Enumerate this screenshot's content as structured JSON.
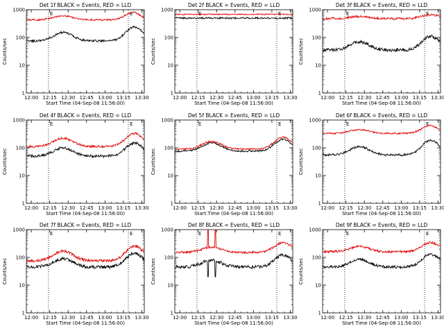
{
  "figure": {
    "background": "#ffffff",
    "colors": {
      "events": "#000000",
      "lld": "#e00000",
      "axes": "#000000"
    }
  },
  "chart_data": [
    {
      "type": "line",
      "title": "Det 1f BLACK = Events, RED = LLD",
      "xlabel": "Start Time (04-Sep-08 11:56:00)",
      "ylabel": "Counts/sec",
      "x_ticks": [
        "12:00",
        "12:15",
        "12:30",
        "12:45",
        "13:00",
        "13:15",
        "13:30"
      ],
      "y_ticks": [
        "1",
        "10",
        "100",
        "1000"
      ],
      "y_scale": "log",
      "ylim": [
        1,
        1000
      ],
      "xlim_minutes": [
        0,
        96
      ],
      "vlines_minutes": [
        18,
        83
      ],
      "annotations": [
        "E",
        "E"
      ],
      "series": [
        {
          "name": "Events",
          "color": "#000000",
          "shape": "wave",
          "base": 75,
          "peaks": [
            150,
            240
          ],
          "noise": 0.04
        },
        {
          "name": "LLD",
          "color": "#e00000",
          "shape": "wave",
          "base": 430,
          "peaks": [
            600,
            820
          ],
          "noise": 0.03,
          "tail": 500
        }
      ]
    },
    {
      "type": "line",
      "title": "Det 2f BLACK = Events, RED = LLD",
      "xlabel": "Start Time (04-Sep-08 11:56:00)",
      "ylabel": "Counts/sec",
      "x_ticks": [
        "12:00",
        "12:15",
        "12:30",
        "12:45",
        "13:00",
        "13:15",
        "13:30"
      ],
      "y_ticks": [
        "1",
        "10",
        "100",
        "1000"
      ],
      "y_scale": "log",
      "ylim": [
        1,
        1000
      ],
      "xlim_minutes": [
        0,
        96
      ],
      "vlines_minutes": [
        18,
        83
      ],
      "annotations": [
        "E",
        "E"
      ],
      "series": [
        {
          "name": "Events",
          "color": "#000000",
          "shape": "flat",
          "base": 500,
          "peaks": [],
          "noise": 0.03
        },
        {
          "name": "LLD",
          "color": "#e00000",
          "shape": "flat",
          "base": 680,
          "peaks": [],
          "noise": 0.02
        }
      ]
    },
    {
      "type": "line",
      "title": "Det 3f BLACK = Events, RED = LLD",
      "xlabel": "Start Time (04-Sep-08 11:56:00)",
      "ylabel": "Counts/sec",
      "x_ticks": [
        "12:00",
        "12:15",
        "12:30",
        "12:45",
        "13:00",
        "13:15",
        "13:30"
      ],
      "y_ticks": [
        "1",
        "10",
        "100",
        "1000"
      ],
      "y_scale": "log",
      "ylim": [
        1,
        1000
      ],
      "xlim_minutes": [
        0,
        96
      ],
      "vlines_minutes": [
        18,
        83
      ],
      "annotations": [
        "E",
        "E"
      ],
      "series": [
        {
          "name": "Events",
          "color": "#000000",
          "shape": "wave",
          "base": 35,
          "peaks": [
            70,
            110
          ],
          "noise": 0.06
        },
        {
          "name": "LLD",
          "color": "#e00000",
          "shape": "wave",
          "base": 480,
          "peaks": [
            570,
            650
          ],
          "noise": 0.04
        }
      ]
    },
    {
      "type": "line",
      "title": "Det 4f BLACK = Events, RED = LLD",
      "xlabel": "Start Time (04-Sep-08 11:56:00)",
      "ylabel": "Counts/sec",
      "x_ticks": [
        "12:00",
        "12:15",
        "12:30",
        "12:45",
        "13:00",
        "13:15",
        "13:30"
      ],
      "y_ticks": [
        "1",
        "10",
        "100",
        "1000"
      ],
      "y_scale": "log",
      "ylim": [
        1,
        1000
      ],
      "xlim_minutes": [
        0,
        96
      ],
      "vlines_minutes": [
        18,
        83
      ],
      "annotations": [
        "E",
        "E"
      ],
      "series": [
        {
          "name": "Events",
          "color": "#000000",
          "shape": "wave",
          "base": 50,
          "peaks": [
            100,
            150
          ],
          "noise": 0.05
        },
        {
          "name": "LLD",
          "color": "#e00000",
          "shape": "wave",
          "base": 110,
          "peaks": [
            220,
            330
          ],
          "noise": 0.04
        }
      ]
    },
    {
      "type": "line",
      "title": "Det 5f BLACK = Events, RED = LLD",
      "xlabel": "Start Time (04-Sep-08 11:56:00)",
      "ylabel": "Counts/sec",
      "x_ticks": [
        "12:00",
        "12:15",
        "12:30",
        "12:45",
        "13:00",
        "13:15",
        "13:30"
      ],
      "y_ticks": [
        "1",
        "10",
        "100",
        "1000"
      ],
      "y_scale": "log",
      "ylim": [
        1,
        1000
      ],
      "xlim_minutes": [
        0,
        96
      ],
      "vlines_minutes": [
        18,
        83
      ],
      "annotations": [
        "E",
        "E"
      ],
      "series": [
        {
          "name": "Events",
          "color": "#000000",
          "shape": "wave",
          "base": 75,
          "peaks": [
            150,
            200
          ],
          "noise": 0.03
        },
        {
          "name": "LLD",
          "color": "#e00000",
          "shape": "wave",
          "base": 90,
          "peaks": [
            170,
            240
          ],
          "noise": 0.03
        }
      ]
    },
    {
      "type": "line",
      "title": "Det 6f BLACK = Events, RED = LLD",
      "xlabel": "Start Time (04-Sep-08 11:56:00)",
      "ylabel": "Counts/sec",
      "x_ticks": [
        "12:00",
        "12:15",
        "12:30",
        "12:45",
        "13:00",
        "13:15",
        "13:30"
      ],
      "y_ticks": [
        "1",
        "10",
        "100",
        "1000"
      ],
      "y_scale": "log",
      "ylim": [
        1,
        1000
      ],
      "xlim_minutes": [
        0,
        96
      ],
      "vlines_minutes": [
        18,
        83
      ],
      "annotations": [
        "E",
        "E"
      ],
      "series": [
        {
          "name": "Events",
          "color": "#000000",
          "shape": "wave",
          "base": 55,
          "peaks": [
            110,
            190
          ],
          "noise": 0.04
        },
        {
          "name": "LLD",
          "color": "#e00000",
          "shape": "wave",
          "base": 330,
          "peaks": [
            450,
            640
          ],
          "noise": 0.03,
          "tail": 450
        }
      ]
    },
    {
      "type": "line",
      "title": "Det 7f BLACK = Events, RED = LLD",
      "xlabel": "Start Time (04-Sep-08 11:56:00)",
      "ylabel": "Counts/sec",
      "x_ticks": [
        "12:00",
        "12:15",
        "12:30",
        "12:45",
        "13:00",
        "13:15",
        "13:30"
      ],
      "y_ticks": [
        "1",
        "10",
        "100",
        "1000"
      ],
      "y_scale": "log",
      "ylim": [
        1,
        1000
      ],
      "xlim_minutes": [
        0,
        96
      ],
      "vlines_minutes": [
        18,
        83
      ],
      "annotations": [
        "E",
        "E"
      ],
      "series": [
        {
          "name": "Events",
          "color": "#000000",
          "shape": "wave",
          "base": 45,
          "peaks": [
            90,
            140
          ],
          "noise": 0.06
        },
        {
          "name": "LLD",
          "color": "#e00000",
          "shape": "wave",
          "base": 75,
          "peaks": [
            170,
            260
          ],
          "noise": 0.05
        }
      ]
    },
    {
      "type": "line",
      "title": "Det 8f BLACK = Events, RED = LLD",
      "xlabel": "Start Time (04-Sep-08 11:56:00)",
      "ylabel": "Counts/sec",
      "x_ticks": [
        "12:00",
        "12:15",
        "12:30",
        "12:45",
        "13:00",
        "13:15",
        "13:30"
      ],
      "y_ticks": [
        "1",
        "10",
        "100",
        "1000"
      ],
      "y_scale": "log",
      "ylim": [
        1,
        1000
      ],
      "xlim_minutes": [
        0,
        96
      ],
      "vlines_minutes": [
        18,
        83
      ],
      "annotations": [
        "E",
        "E"
      ],
      "series": [
        {
          "name": "Events",
          "color": "#000000",
          "shape": "wave",
          "base": 45,
          "peaks": [
            80,
            120
          ],
          "noise": 0.06,
          "spikes": [
            [
              27,
              20
            ],
            [
              33,
              20
            ]
          ]
        },
        {
          "name": "LLD",
          "color": "#e00000",
          "shape": "wave",
          "base": 150,
          "peaks": [
            230,
            340
          ],
          "noise": 0.04,
          "spikes": [
            [
              27,
              1000
            ],
            [
              33,
              1000
            ]
          ]
        }
      ]
    },
    {
      "type": "line",
      "title": "Det 9f BLACK = Events, RED = LLD",
      "xlabel": "Start Time (04-Sep-08 11:56:00)",
      "ylabel": "Counts/sec",
      "x_ticks": [
        "12:00",
        "12:15",
        "12:30",
        "12:45",
        "13:00",
        "13:15",
        "13:30"
      ],
      "y_ticks": [
        "1",
        "10",
        "100",
        "1000"
      ],
      "y_scale": "log",
      "ylim": [
        1,
        1000
      ],
      "xlim_minutes": [
        0,
        96
      ],
      "vlines_minutes": [
        18,
        83
      ],
      "annotations": [
        "E",
        "E"
      ],
      "series": [
        {
          "name": "Events",
          "color": "#000000",
          "shape": "wave",
          "base": 45,
          "peaks": [
            85,
            130
          ],
          "noise": 0.05
        },
        {
          "name": "LLD",
          "color": "#e00000",
          "shape": "wave",
          "base": 160,
          "peaks": [
            250,
            340
          ],
          "noise": 0.04
        }
      ]
    }
  ]
}
